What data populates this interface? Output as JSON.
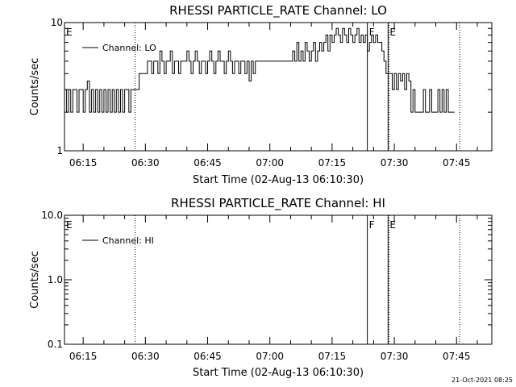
{
  "timestamp": "21-Oct-2021 08:25",
  "chart_data": [
    {
      "type": "line",
      "title": "RHESSI PARTICLE_RATE Channel: LO",
      "xlabel": "Start Time (02-Aug-13 06:10:30)",
      "ylabel": "Counts/sec",
      "yscale": "log",
      "ylim": [
        1,
        10
      ],
      "yticks": [
        "1",
        "10"
      ],
      "xlim": [
        "06:10:30",
        "07:53:30"
      ],
      "xticks": [
        "06:15",
        "06:30",
        "06:45",
        "07:00",
        "07:15",
        "07:30",
        "07:45"
      ],
      "legend": {
        "position": "top-left",
        "entries": [
          "Channel: LO"
        ]
      },
      "flags": [
        {
          "label": "E",
          "time": "06:10:30",
          "line": "none"
        },
        {
          "label": "F",
          "time": "07:23:30",
          "line": "solid"
        },
        {
          "label": "E",
          "time": "07:28:30",
          "line": "solid"
        }
      ],
      "markers": [
        {
          "time": "06:27:30",
          "style": "dotted"
        },
        {
          "time": "07:28:45",
          "style": "dotted"
        },
        {
          "time": "07:45:45",
          "style": "dotted"
        }
      ],
      "series": [
        {
          "name": "Channel: LO",
          "points": [
            [
              "06:10:45",
              3
            ],
            [
              "06:11:15",
              2
            ],
            [
              "06:11:45",
              3
            ],
            [
              "06:12:15",
              2
            ],
            [
              "06:12:45",
              3
            ],
            [
              "06:13:15",
              3
            ],
            [
              "06:13:45",
              2
            ],
            [
              "06:14:15",
              3
            ],
            [
              "06:14:45",
              3
            ],
            [
              "06:15:15",
              2
            ],
            [
              "06:15:45",
              3
            ],
            [
              "06:16:15",
              3.5
            ],
            [
              "06:16:45",
              2
            ],
            [
              "06:17:15",
              3
            ],
            [
              "06:17:45",
              2
            ],
            [
              "06:18:15",
              3
            ],
            [
              "06:18:45",
              2
            ],
            [
              "06:19:15",
              3
            ],
            [
              "06:19:45",
              2
            ],
            [
              "06:20:15",
              3
            ],
            [
              "06:20:45",
              2
            ],
            [
              "06:21:15",
              3
            ],
            [
              "06:21:45",
              2
            ],
            [
              "06:22:15",
              3
            ],
            [
              "06:22:45",
              2
            ],
            [
              "06:23:15",
              3
            ],
            [
              "06:23:45",
              2
            ],
            [
              "06:24:15",
              3
            ],
            [
              "06:24:45",
              2
            ],
            [
              "06:25:15",
              3
            ],
            [
              "06:25:45",
              3
            ],
            [
              "06:26:15",
              2
            ],
            [
              "06:26:45",
              3
            ],
            [
              "06:27:15",
              3
            ],
            [
              "06:27:45",
              3
            ],
            [
              "06:28:15",
              3
            ],
            [
              "06:28:45",
              4
            ],
            [
              "06:29:15",
              4
            ],
            [
              "06:29:45",
              4
            ],
            [
              "06:30:15",
              4
            ],
            [
              "06:30:45",
              5
            ],
            [
              "06:31:15",
              5
            ],
            [
              "06:31:45",
              4
            ],
            [
              "06:32:15",
              5
            ],
            [
              "06:32:45",
              5
            ],
            [
              "06:33:15",
              4
            ],
            [
              "06:33:45",
              6
            ],
            [
              "06:34:15",
              5
            ],
            [
              "06:34:45",
              4
            ],
            [
              "06:35:15",
              5
            ],
            [
              "06:35:45",
              5
            ],
            [
              "06:36:15",
              6
            ],
            [
              "06:36:45",
              4
            ],
            [
              "06:37:15",
              5
            ],
            [
              "06:37:45",
              5
            ],
            [
              "06:38:15",
              4
            ],
            [
              "06:38:45",
              5
            ],
            [
              "06:39:15",
              5
            ],
            [
              "06:39:45",
              5
            ],
            [
              "06:40:15",
              6
            ],
            [
              "06:40:45",
              5
            ],
            [
              "06:41:15",
              4
            ],
            [
              "06:41:45",
              5
            ],
            [
              "06:42:15",
              6
            ],
            [
              "06:42:45",
              5
            ],
            [
              "06:43:15",
              4
            ],
            [
              "06:43:45",
              5
            ],
            [
              "06:44:15",
              5
            ],
            [
              "06:44:45",
              4
            ],
            [
              "06:45:15",
              5
            ],
            [
              "06:45:45",
              6
            ],
            [
              "06:46:15",
              5
            ],
            [
              "06:46:45",
              4
            ],
            [
              "06:47:15",
              5
            ],
            [
              "06:47:45",
              6
            ],
            [
              "06:48:15",
              5
            ],
            [
              "06:48:45",
              5
            ],
            [
              "06:49:15",
              4
            ],
            [
              "06:49:45",
              5
            ],
            [
              "06:50:15",
              6
            ],
            [
              "06:50:45",
              5
            ],
            [
              "06:51:15",
              4
            ],
            [
              "06:51:45",
              5
            ],
            [
              "06:52:15",
              5
            ],
            [
              "06:52:45",
              4
            ],
            [
              "06:53:15",
              5
            ],
            [
              "06:53:45",
              5
            ],
            [
              "06:54:15",
              4
            ],
            [
              "06:54:45",
              5
            ],
            [
              "06:55:15",
              3.5
            ],
            [
              "06:55:45",
              5
            ],
            [
              "06:56:15",
              4
            ],
            [
              "06:56:45",
              5
            ],
            [
              "06:57:15",
              5
            ],
            [
              "06:57:45",
              5
            ],
            [
              "06:58:15",
              5
            ],
            [
              "06:58:45",
              5
            ],
            [
              "06:59:15",
              5
            ],
            [
              "06:59:45",
              5
            ],
            [
              "07:00:15",
              5
            ],
            [
              "07:00:45",
              5
            ],
            [
              "07:01:15",
              5
            ],
            [
              "07:01:45",
              5
            ],
            [
              "07:02:15",
              5
            ],
            [
              "07:02:45",
              5
            ],
            [
              "07:03:15",
              5
            ],
            [
              "07:03:45",
              5
            ],
            [
              "07:04:15",
              5
            ],
            [
              "07:04:45",
              5
            ],
            [
              "07:05:15",
              5
            ],
            [
              "07:05:45",
              6
            ],
            [
              "07:06:15",
              5
            ],
            [
              "07:06:45",
              7
            ],
            [
              "07:07:15",
              5
            ],
            [
              "07:07:45",
              6
            ],
            [
              "07:08:15",
              5
            ],
            [
              "07:08:45",
              7
            ],
            [
              "07:09:15",
              6
            ],
            [
              "07:09:45",
              5
            ],
            [
              "07:10:15",
              6
            ],
            [
              "07:10:45",
              7
            ],
            [
              "07:11:15",
              5
            ],
            [
              "07:11:45",
              6
            ],
            [
              "07:12:15",
              7
            ],
            [
              "07:12:45",
              6
            ],
            [
              "07:13:15",
              7
            ],
            [
              "07:13:45",
              8
            ],
            [
              "07:14:15",
              6
            ],
            [
              "07:14:45",
              8
            ],
            [
              "07:15:15",
              7
            ],
            [
              "07:15:45",
              8
            ],
            [
              "07:16:15",
              9
            ],
            [
              "07:16:45",
              8
            ],
            [
              "07:17:15",
              7
            ],
            [
              "07:17:45",
              9
            ],
            [
              "07:18:15",
              8
            ],
            [
              "07:18:45",
              7
            ],
            [
              "07:19:15",
              9
            ],
            [
              "07:19:45",
              8
            ],
            [
              "07:20:15",
              7
            ],
            [
              "07:20:45",
              8
            ],
            [
              "07:21:15",
              9
            ],
            [
              "07:21:45",
              7
            ],
            [
              "07:22:15",
              8
            ],
            [
              "07:22:45",
              7
            ],
            [
              "07:23:15",
              8
            ],
            [
              "07:23:45",
              6
            ],
            [
              "07:24:15",
              7
            ],
            [
              "07:24:45",
              8
            ],
            [
              "07:25:15",
              7
            ],
            [
              "07:25:45",
              8
            ],
            [
              "07:26:15",
              7
            ],
            [
              "07:26:45",
              7
            ],
            [
              "07:27:15",
              6
            ],
            [
              "07:27:45",
              5
            ],
            [
              "07:28:15",
              4
            ],
            [
              "07:28:45",
              4
            ],
            [
              "07:29:15",
              4
            ],
            [
              "07:29:45",
              3
            ],
            [
              "07:30:15",
              4
            ],
            [
              "07:30:45",
              3
            ],
            [
              "07:31:15",
              4
            ],
            [
              "07:31:45",
              3.5
            ],
            [
              "07:32:15",
              4
            ],
            [
              "07:32:45",
              3
            ],
            [
              "07:33:15",
              4
            ],
            [
              "07:33:45",
              3.5
            ],
            [
              "07:34:15",
              2
            ],
            [
              "07:34:45",
              3
            ],
            [
              "07:35:15",
              2
            ],
            [
              "07:35:45",
              2
            ],
            [
              "07:36:15",
              2
            ],
            [
              "07:36:45",
              2
            ],
            [
              "07:37:15",
              3
            ],
            [
              "07:37:45",
              2
            ],
            [
              "07:38:15",
              2
            ],
            [
              "07:38:45",
              3
            ],
            [
              "07:39:15",
              2
            ],
            [
              "07:39:45",
              2
            ],
            [
              "07:40:15",
              2
            ],
            [
              "07:40:45",
              3
            ],
            [
              "07:41:15",
              2
            ],
            [
              "07:41:45",
              3
            ],
            [
              "07:42:15",
              2
            ],
            [
              "07:42:45",
              3
            ],
            [
              "07:43:15",
              2
            ],
            [
              "07:43:45",
              2
            ],
            [
              "07:44:15",
              2
            ]
          ]
        }
      ]
    },
    {
      "type": "line",
      "title": "RHESSI PARTICLE_RATE Channel: HI",
      "xlabel": "Start Time (02-Aug-13 06:10:30)",
      "ylabel": "Counts/sec",
      "yscale": "log",
      "ylim": [
        0.1,
        10
      ],
      "yticks": [
        "0.1",
        "1.0",
        "10.0"
      ],
      "xlim": [
        "06:10:30",
        "07:53:30"
      ],
      "xticks": [
        "06:15",
        "06:30",
        "06:45",
        "07:00",
        "07:15",
        "07:30",
        "07:45"
      ],
      "legend": {
        "position": "top-left",
        "entries": [
          "Channel: HI"
        ]
      },
      "flags": [
        {
          "label": "E",
          "time": "06:10:30",
          "line": "none"
        },
        {
          "label": "F",
          "time": "07:23:30",
          "line": "solid"
        },
        {
          "label": "E",
          "time": "07:28:30",
          "line": "solid"
        }
      ],
      "markers": [
        {
          "time": "06:27:30",
          "style": "dotted"
        },
        {
          "time": "07:28:45",
          "style": "dotted"
        },
        {
          "time": "07:45:45",
          "style": "dotted"
        }
      ],
      "series": [
        {
          "name": "Channel: HI",
          "points": []
        }
      ]
    }
  ]
}
